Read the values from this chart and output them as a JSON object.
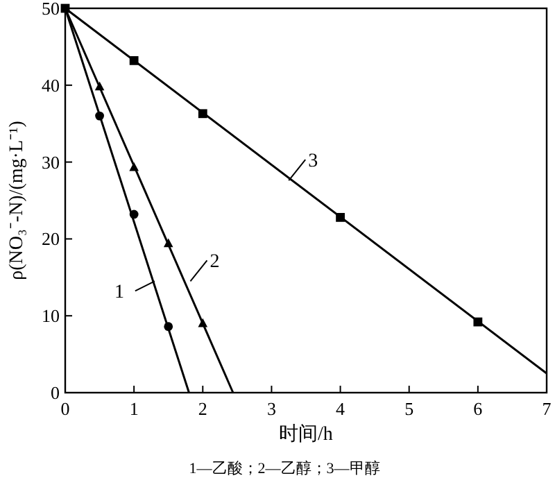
{
  "chart_data": {
    "type": "scatter",
    "xlabel": "时间/h",
    "ylabel": "ρ(NO₃⁻-N)/(mg·L⁻¹)",
    "xlim": [
      0,
      7
    ],
    "ylim": [
      0,
      50
    ],
    "xticks": [
      0,
      1,
      2,
      3,
      4,
      5,
      6,
      7
    ],
    "yticks": [
      0,
      10,
      20,
      30,
      40,
      50
    ],
    "grid": false,
    "series": [
      {
        "type": "scatter",
        "marker": "circle",
        "color": "#000000",
        "x": [
          0.5,
          1,
          1.5
        ],
        "values": [
          36,
          23.2,
          8.6
        ]
      },
      {
        "type": "scatter",
        "marker": "triangle",
        "color": "#000000",
        "x": [
          0.5,
          1,
          1.5,
          2
        ],
        "values": [
          39.8,
          29.3,
          19.4,
          9
        ]
      },
      {
        "type": "scatter",
        "marker": "square",
        "color": "#000000",
        "x": [
          0,
          1,
          2,
          4,
          6
        ],
        "values": [
          50,
          43.2,
          36.3,
          22.8,
          9.2
        ]
      },
      {
        "type": "line",
        "color": "#000000",
        "x": [
          0,
          1.8
        ],
        "values": [
          50,
          0
        ]
      },
      {
        "type": "line",
        "color": "#000000",
        "x": [
          0,
          2.44
        ],
        "values": [
          50,
          0
        ]
      },
      {
        "type": "line",
        "color": "#000000",
        "x": [
          0,
          7
        ],
        "values": [
          50,
          2.5
        ]
      }
    ],
    "annotations": [
      {
        "text": "1",
        "x": 1.3,
        "y": 14.5
      },
      {
        "text": "2",
        "x": 1.82,
        "y": 14.5
      },
      {
        "text": "3",
        "x": 3.25,
        "y": 27.6
      },
      "1—乙酸；2—乙醇；3—甲醇"
    ]
  }
}
